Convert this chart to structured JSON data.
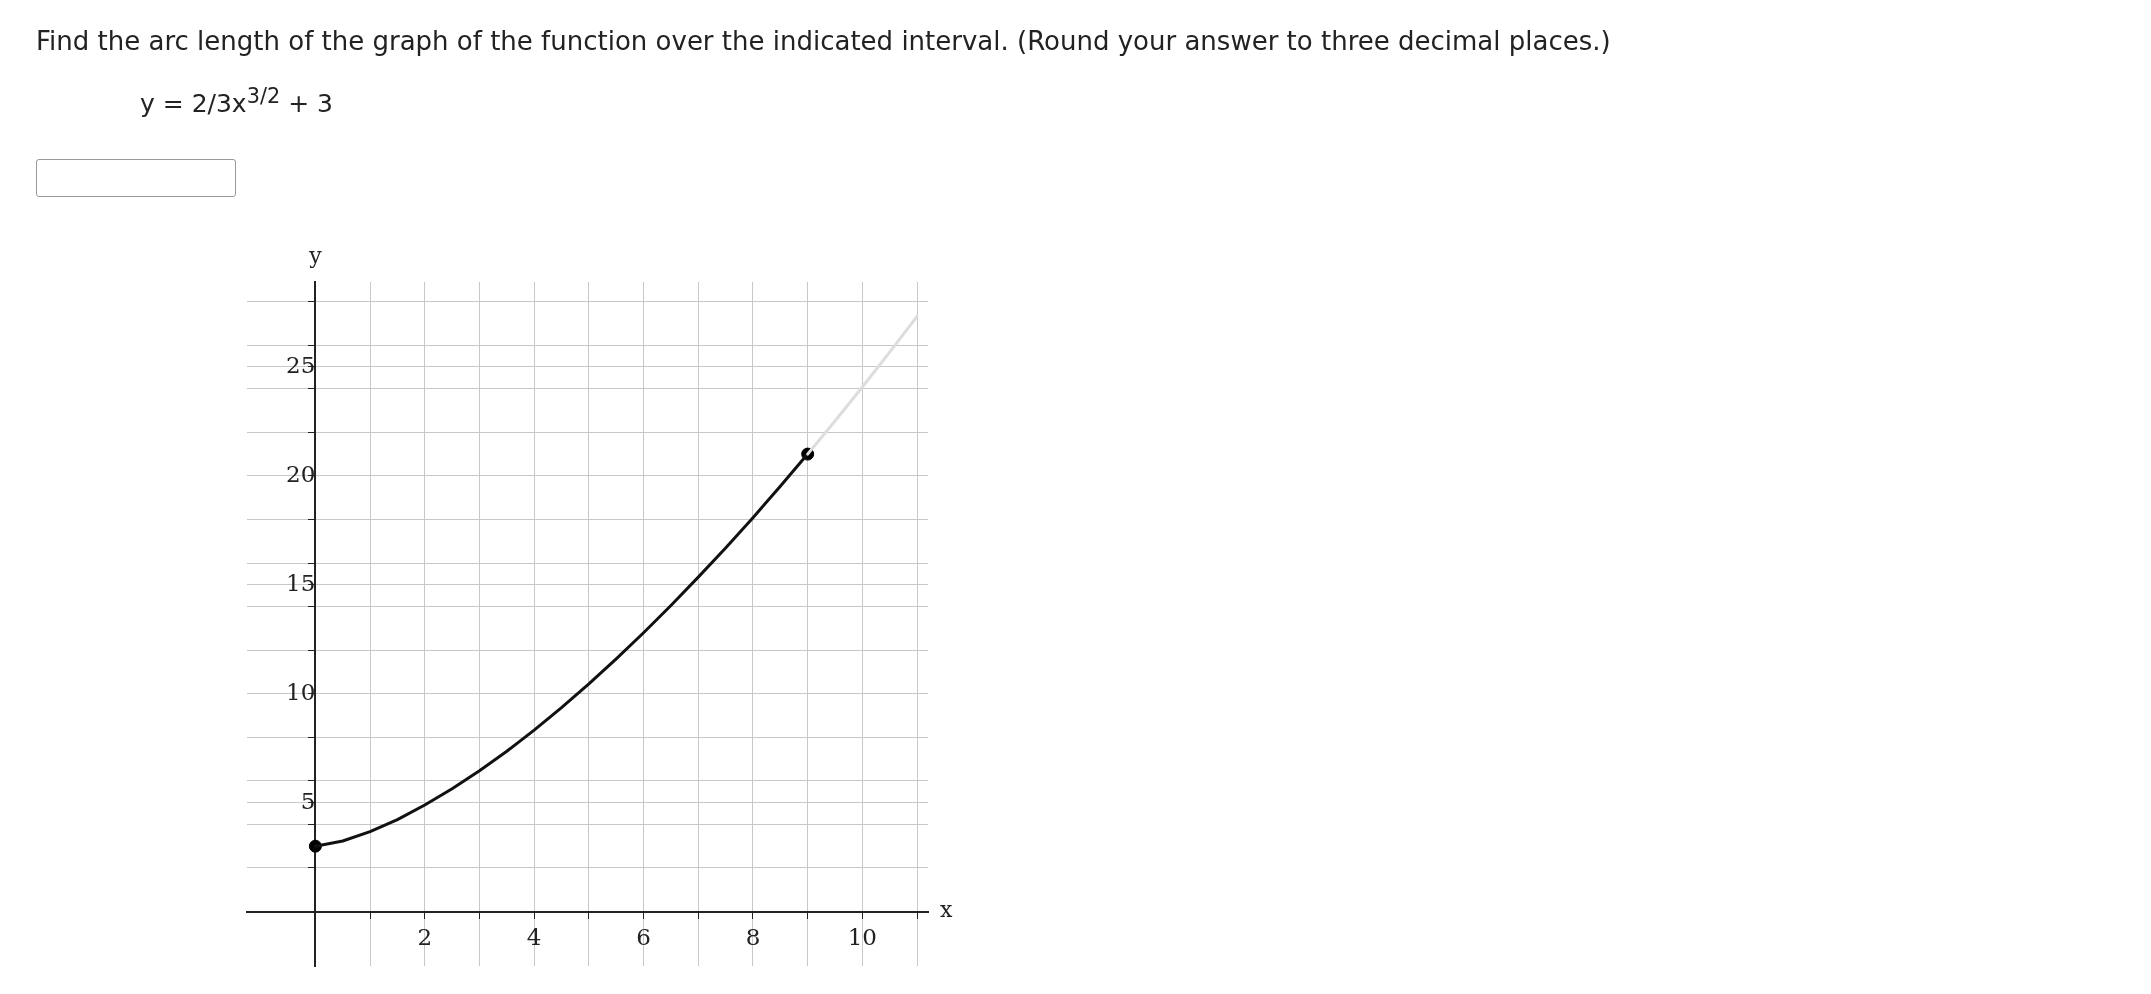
{
  "chart_data": {
    "type": "line",
    "title": "Find the arc length of the graph of the function over the indicated interval. (Round your answer to three decimal places.)",
    "subtitle": "y = 2/3x$^{3/2}$ + 3",
    "xlabel": "x",
    "ylabel": "y",
    "xlim": [
      -1.25,
      11.2
    ],
    "ylim": [
      -2.5,
      28.9
    ],
    "xticks": [
      {
        "value": 1,
        "label": null
      },
      2,
      {
        "value": 3,
        "label": null
      },
      4,
      {
        "value": 5,
        "label": null
      },
      6,
      {
        "value": 7,
        "label": null
      },
      8,
      {
        "value": 9,
        "label": null
      },
      10,
      {
        "value": 11,
        "label": null
      }
    ],
    "yticks": [
      {
        "value": 2,
        "label": null
      },
      {
        "value": 4,
        "label": null
      },
      5,
      {
        "value": 6,
        "label": null
      },
      {
        "value": 8,
        "label": null
      },
      10,
      {
        "value": 12,
        "label": null
      },
      {
        "value": 14,
        "label": null
      },
      15,
      {
        "value": 16,
        "label": null
      },
      {
        "value": 18,
        "label": null
      },
      20,
      {
        "value": 22,
        "label": null
      },
      {
        "value": 24,
        "label": null
      },
      25,
      {
        "value": 26,
        "label": null
      },
      {
        "value": 28,
        "label": null
      }
    ],
    "grid": true,
    "series": [
      {
        "color": "#dddddd",
        "x": [
          9,
          9.5,
          10,
          10.5,
          11
        ],
        "values": [
          21,
          22.52,
          24.08,
          25.68,
          27.32
        ]
      },
      {
        "color": "#111111",
        "line_style": "solid",
        "x": [
          0,
          0.5,
          1,
          1.5,
          2,
          2.5,
          3,
          3.5,
          4,
          4.5,
          5,
          5.5,
          6,
          6.5,
          7,
          7.5,
          8,
          8.5,
          9
        ],
        "values": [
          3,
          3.24,
          3.67,
          4.22,
          4.89,
          5.64,
          6.46,
          7.36,
          8.33,
          9.36,
          10.45,
          11.6,
          12.8,
          14.05,
          15.35,
          16.69,
          18.08,
          19.52,
          21
        ]
      },
      {
        "type": "scatter",
        "color": "#000000",
        "marker": "circle",
        "x": [
          0,
          9
        ],
        "values": [
          3,
          21
        ]
      }
    ]
  }
}
